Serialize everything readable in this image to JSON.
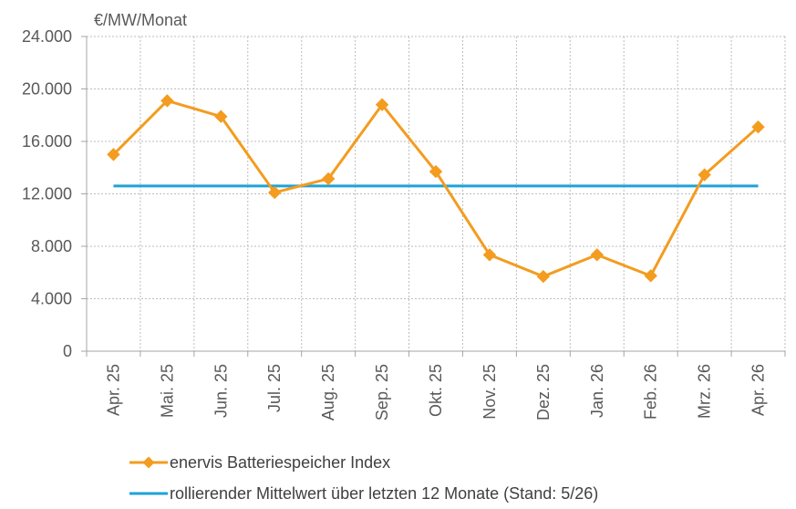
{
  "chart_data": {
    "type": "line",
    "unit_label": "€/MW/Monat",
    "categories": [
      "Apr. 25",
      "Mai. 25",
      "Jun. 25",
      "Jul. 25",
      "Aug. 25",
      "Sep. 25",
      "Okt. 25",
      "Nov. 25",
      "Dez. 25",
      "Jan. 26",
      "Feb. 26",
      "Mrz. 26",
      "Apr. 26"
    ],
    "y_ticks": [
      "0",
      "4.000",
      "8.000",
      "12.000",
      "16.000",
      "20.000",
      "24.000"
    ],
    "ylim": [
      0,
      24000
    ],
    "grid": true,
    "legend_position": "bottom-left",
    "series": [
      {
        "name": "enervis Batteriespeicher Index",
        "color": "#f39c1f",
        "marker": "diamond",
        "values": [
          15000,
          19100,
          17900,
          12100,
          13150,
          18800,
          13700,
          7350,
          5700,
          7350,
          5750,
          13450,
          17100
        ]
      },
      {
        "name": "rollierender Mittelwert über letzten 12 Monate (Stand: 5/26)",
        "color": "#1fa2d8",
        "marker": "none",
        "values": [
          12600,
          12600,
          12600,
          12600,
          12600,
          12600,
          12600,
          12600,
          12600,
          12600,
          12600,
          12600,
          12600
        ]
      }
    ]
  }
}
